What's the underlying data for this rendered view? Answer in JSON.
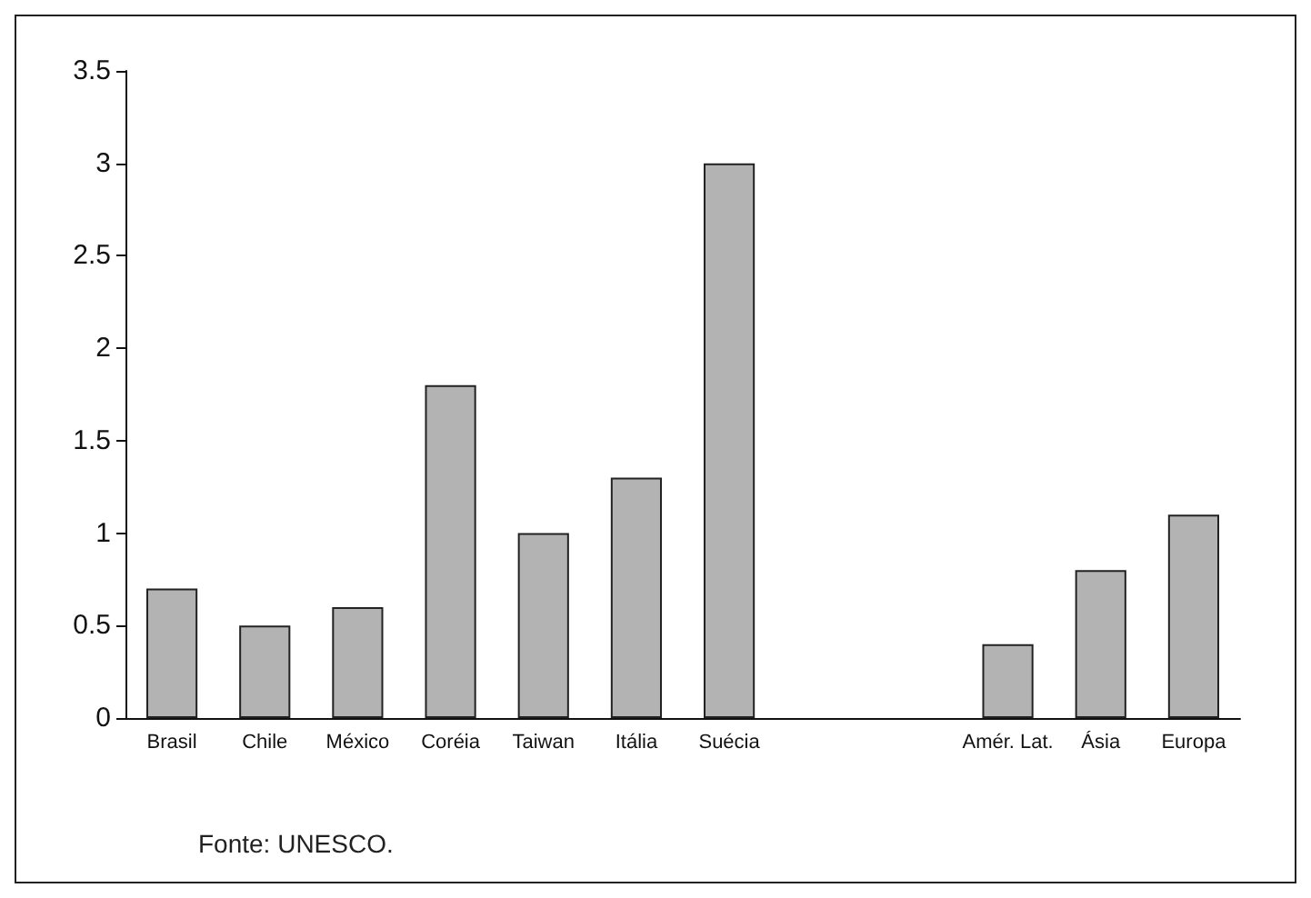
{
  "chart_data": {
    "type": "bar",
    "categories": [
      "Brasil",
      "Chile",
      "México",
      "Coréia",
      "Taiwan",
      "Itália",
      "Suécia",
      null,
      null,
      "Amér. Lat.",
      "Ásia",
      "Europa"
    ],
    "values": [
      0.7,
      0.5,
      0.6,
      1.8,
      1.0,
      1.3,
      3.0,
      null,
      null,
      0.4,
      0.8,
      1.1
    ],
    "color": "#b3b3b3",
    "ylim": [
      0,
      3.5
    ],
    "yticks": [
      0,
      0.5,
      1,
      1.5,
      2,
      2.5,
      3,
      3.5
    ],
    "grid": false,
    "annotations": [
      "Fonte: UNESCO."
    ]
  }
}
